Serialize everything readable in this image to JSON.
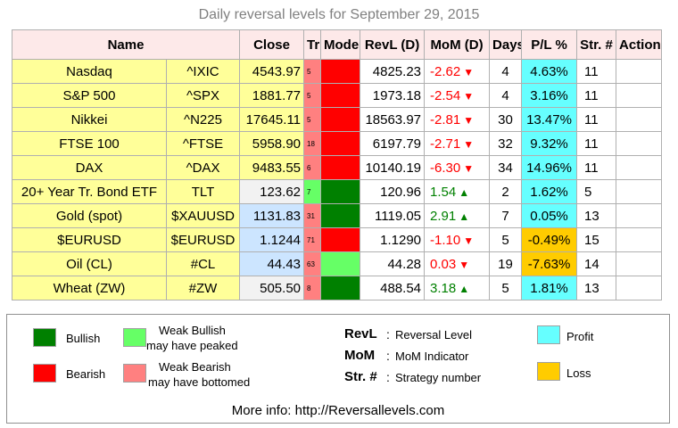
{
  "title": "Daily reversal levels for September 29, 2015",
  "headers": [
    "Name",
    "Close",
    "Tr",
    "Mode",
    "RevL (D)",
    "MoM (D)",
    "Days",
    "P/L %",
    "Str. #",
    "Action"
  ],
  "colors": {
    "bullish": "#008000",
    "weak_bullish": "#66ff66",
    "bearish": "#ff0000",
    "weak_bearish": "#ff8080",
    "profit": "#66ffff",
    "loss": "#ffcc00",
    "mom_up": "#008000",
    "mom_down": "#ff0000"
  },
  "rows": [
    {
      "name": "Nasdaq",
      "ticker": "^IXIC",
      "close": "4543.97",
      "close_bg": "y",
      "tr": "5",
      "tr_color": "#ff8080",
      "mode_color": "#ff0000",
      "revl": "4825.23",
      "mom": "-2.62",
      "mom_dir": "down",
      "days": "4",
      "pl": "4.63%",
      "pl_color": "#66ffff",
      "str": "11",
      "action": ""
    },
    {
      "name": "S&P 500",
      "ticker": "^SPX",
      "close": "1881.77",
      "close_bg": "y",
      "tr": "5",
      "tr_color": "#ff8080",
      "mode_color": "#ff0000",
      "revl": "1973.18",
      "mom": "-2.54",
      "mom_dir": "down",
      "days": "4",
      "pl": "3.16%",
      "pl_color": "#66ffff",
      "str": "11",
      "action": ""
    },
    {
      "name": "Nikkei",
      "ticker": "^N225",
      "close": "17645.11",
      "close_bg": "y",
      "tr": "5",
      "tr_color": "#ff8080",
      "mode_color": "#ff0000",
      "revl": "18563.97",
      "mom": "-2.81",
      "mom_dir": "down",
      "days": "30",
      "pl": "13.47%",
      "pl_color": "#66ffff",
      "str": "11",
      "action": ""
    },
    {
      "name": "FTSE 100",
      "ticker": "^FTSE",
      "close": "5958.90",
      "close_bg": "y",
      "tr": "18",
      "tr_color": "#ff8080",
      "mode_color": "#ff0000",
      "revl": "6197.79",
      "mom": "-2.71",
      "mom_dir": "down",
      "days": "32",
      "pl": "9.32%",
      "pl_color": "#66ffff",
      "str": "11",
      "action": ""
    },
    {
      "name": "DAX",
      "ticker": "^DAX",
      "close": "9483.55",
      "close_bg": "y",
      "tr": "6",
      "tr_color": "#ff8080",
      "mode_color": "#ff0000",
      "revl": "10140.19",
      "mom": "-6.30",
      "mom_dir": "down",
      "days": "34",
      "pl": "14.96%",
      "pl_color": "#66ffff",
      "str": "11",
      "action": ""
    },
    {
      "name": "20+ Year Tr. Bond ETF",
      "ticker": "TLT",
      "close": "123.62",
      "close_bg": "pale",
      "tr": "7",
      "tr_color": "#66ff66",
      "mode_color": "#008000",
      "revl": "120.96",
      "mom": "1.54",
      "mom_dir": "up",
      "days": "2",
      "pl": "1.62%",
      "pl_color": "#66ffff",
      "str": "5",
      "action": ""
    },
    {
      "name": "Gold (spot)",
      "ticker": "$XAUUSD",
      "close": "1131.83",
      "close_bg": "bl",
      "tr": "31",
      "tr_color": "#ff8080",
      "mode_color": "#008000",
      "revl": "1119.05",
      "mom": "2.91",
      "mom_dir": "up",
      "days": "7",
      "pl": "0.05%",
      "pl_color": "#66ffff",
      "str": "13",
      "action": ""
    },
    {
      "name": "$EURUSD",
      "ticker": "$EURUSD",
      "close": "1.1244",
      "close_bg": "bl",
      "tr": "71",
      "tr_color": "#ff8080",
      "mode_color": "#ff0000",
      "revl": "1.1290",
      "mom": "-1.10",
      "mom_dir": "down",
      "days": "5",
      "pl": "-0.49%",
      "pl_color": "#ffcc00",
      "str": "15",
      "action": ""
    },
    {
      "name": "Oil (CL)",
      "ticker": "#CL",
      "close": "44.43",
      "close_bg": "bl",
      "tr": "63",
      "tr_color": "#ff8080",
      "mode_color": "#66ff66",
      "revl": "44.28",
      "mom": "0.03",
      "mom_dir": "down",
      "days": "19",
      "pl": "-7.63%",
      "pl_color": "#ffcc00",
      "str": "14",
      "action": ""
    },
    {
      "name": "Wheat (ZW)",
      "ticker": "#ZW",
      "close": "505.50",
      "close_bg": "pale",
      "tr": "8",
      "tr_color": "#ff8080",
      "mode_color": "#008000",
      "revl": "488.54",
      "mom": "3.18",
      "mom_dir": "up",
      "days": "5",
      "pl": "1.81%",
      "pl_color": "#66ffff",
      "str": "13",
      "action": ""
    }
  ],
  "legend": {
    "bullish": "Bullish",
    "weak_bullish_1": "Weak Bullish",
    "weak_bullish_2": "may have peaked",
    "bearish": "Bearish",
    "weak_bearish_1": "Weak Bearish",
    "weak_bearish_2": "may have bottomed",
    "revl_key": "RevL",
    "revl_desc": "Reversal Level",
    "mom_key": "MoM",
    "mom_desc": "MoM Indicator",
    "str_key": "Str. #",
    "str_desc": "Strategy number",
    "colon": ":",
    "profit": "Profit",
    "loss": "Loss",
    "more_info": "More info: http://Reversallevels.com"
  }
}
